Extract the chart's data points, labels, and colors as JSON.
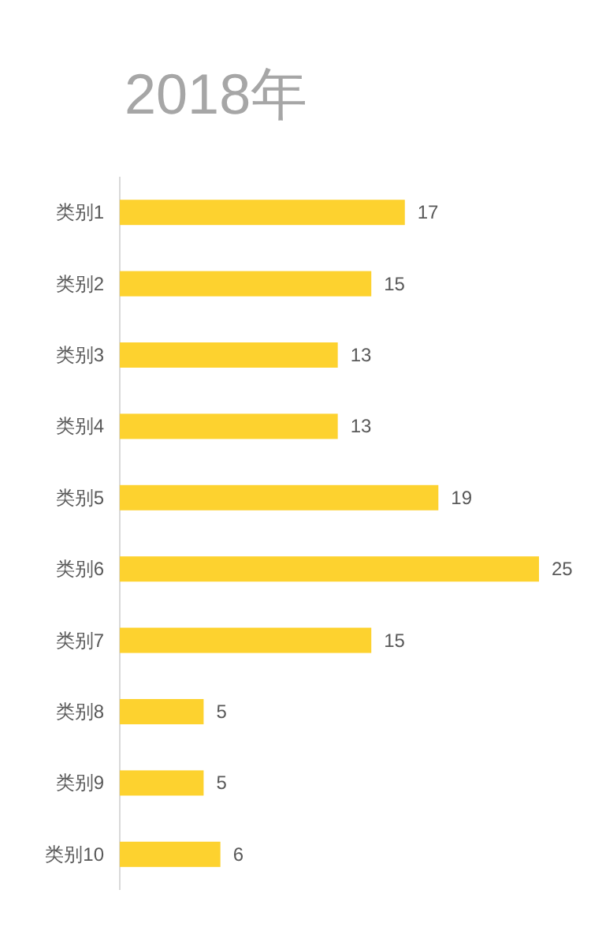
{
  "chart_data": {
    "type": "bar",
    "orientation": "horizontal",
    "title": "2018年",
    "categories": [
      "类别1",
      "类别2",
      "类别3",
      "类别4",
      "类别5",
      "类别6",
      "类别7",
      "类别8",
      "类别9",
      "类别10"
    ],
    "values": [
      17,
      15,
      13,
      13,
      19,
      25,
      15,
      5,
      5,
      6
    ],
    "color": "#fdd22f",
    "data_labels": true
  }
}
